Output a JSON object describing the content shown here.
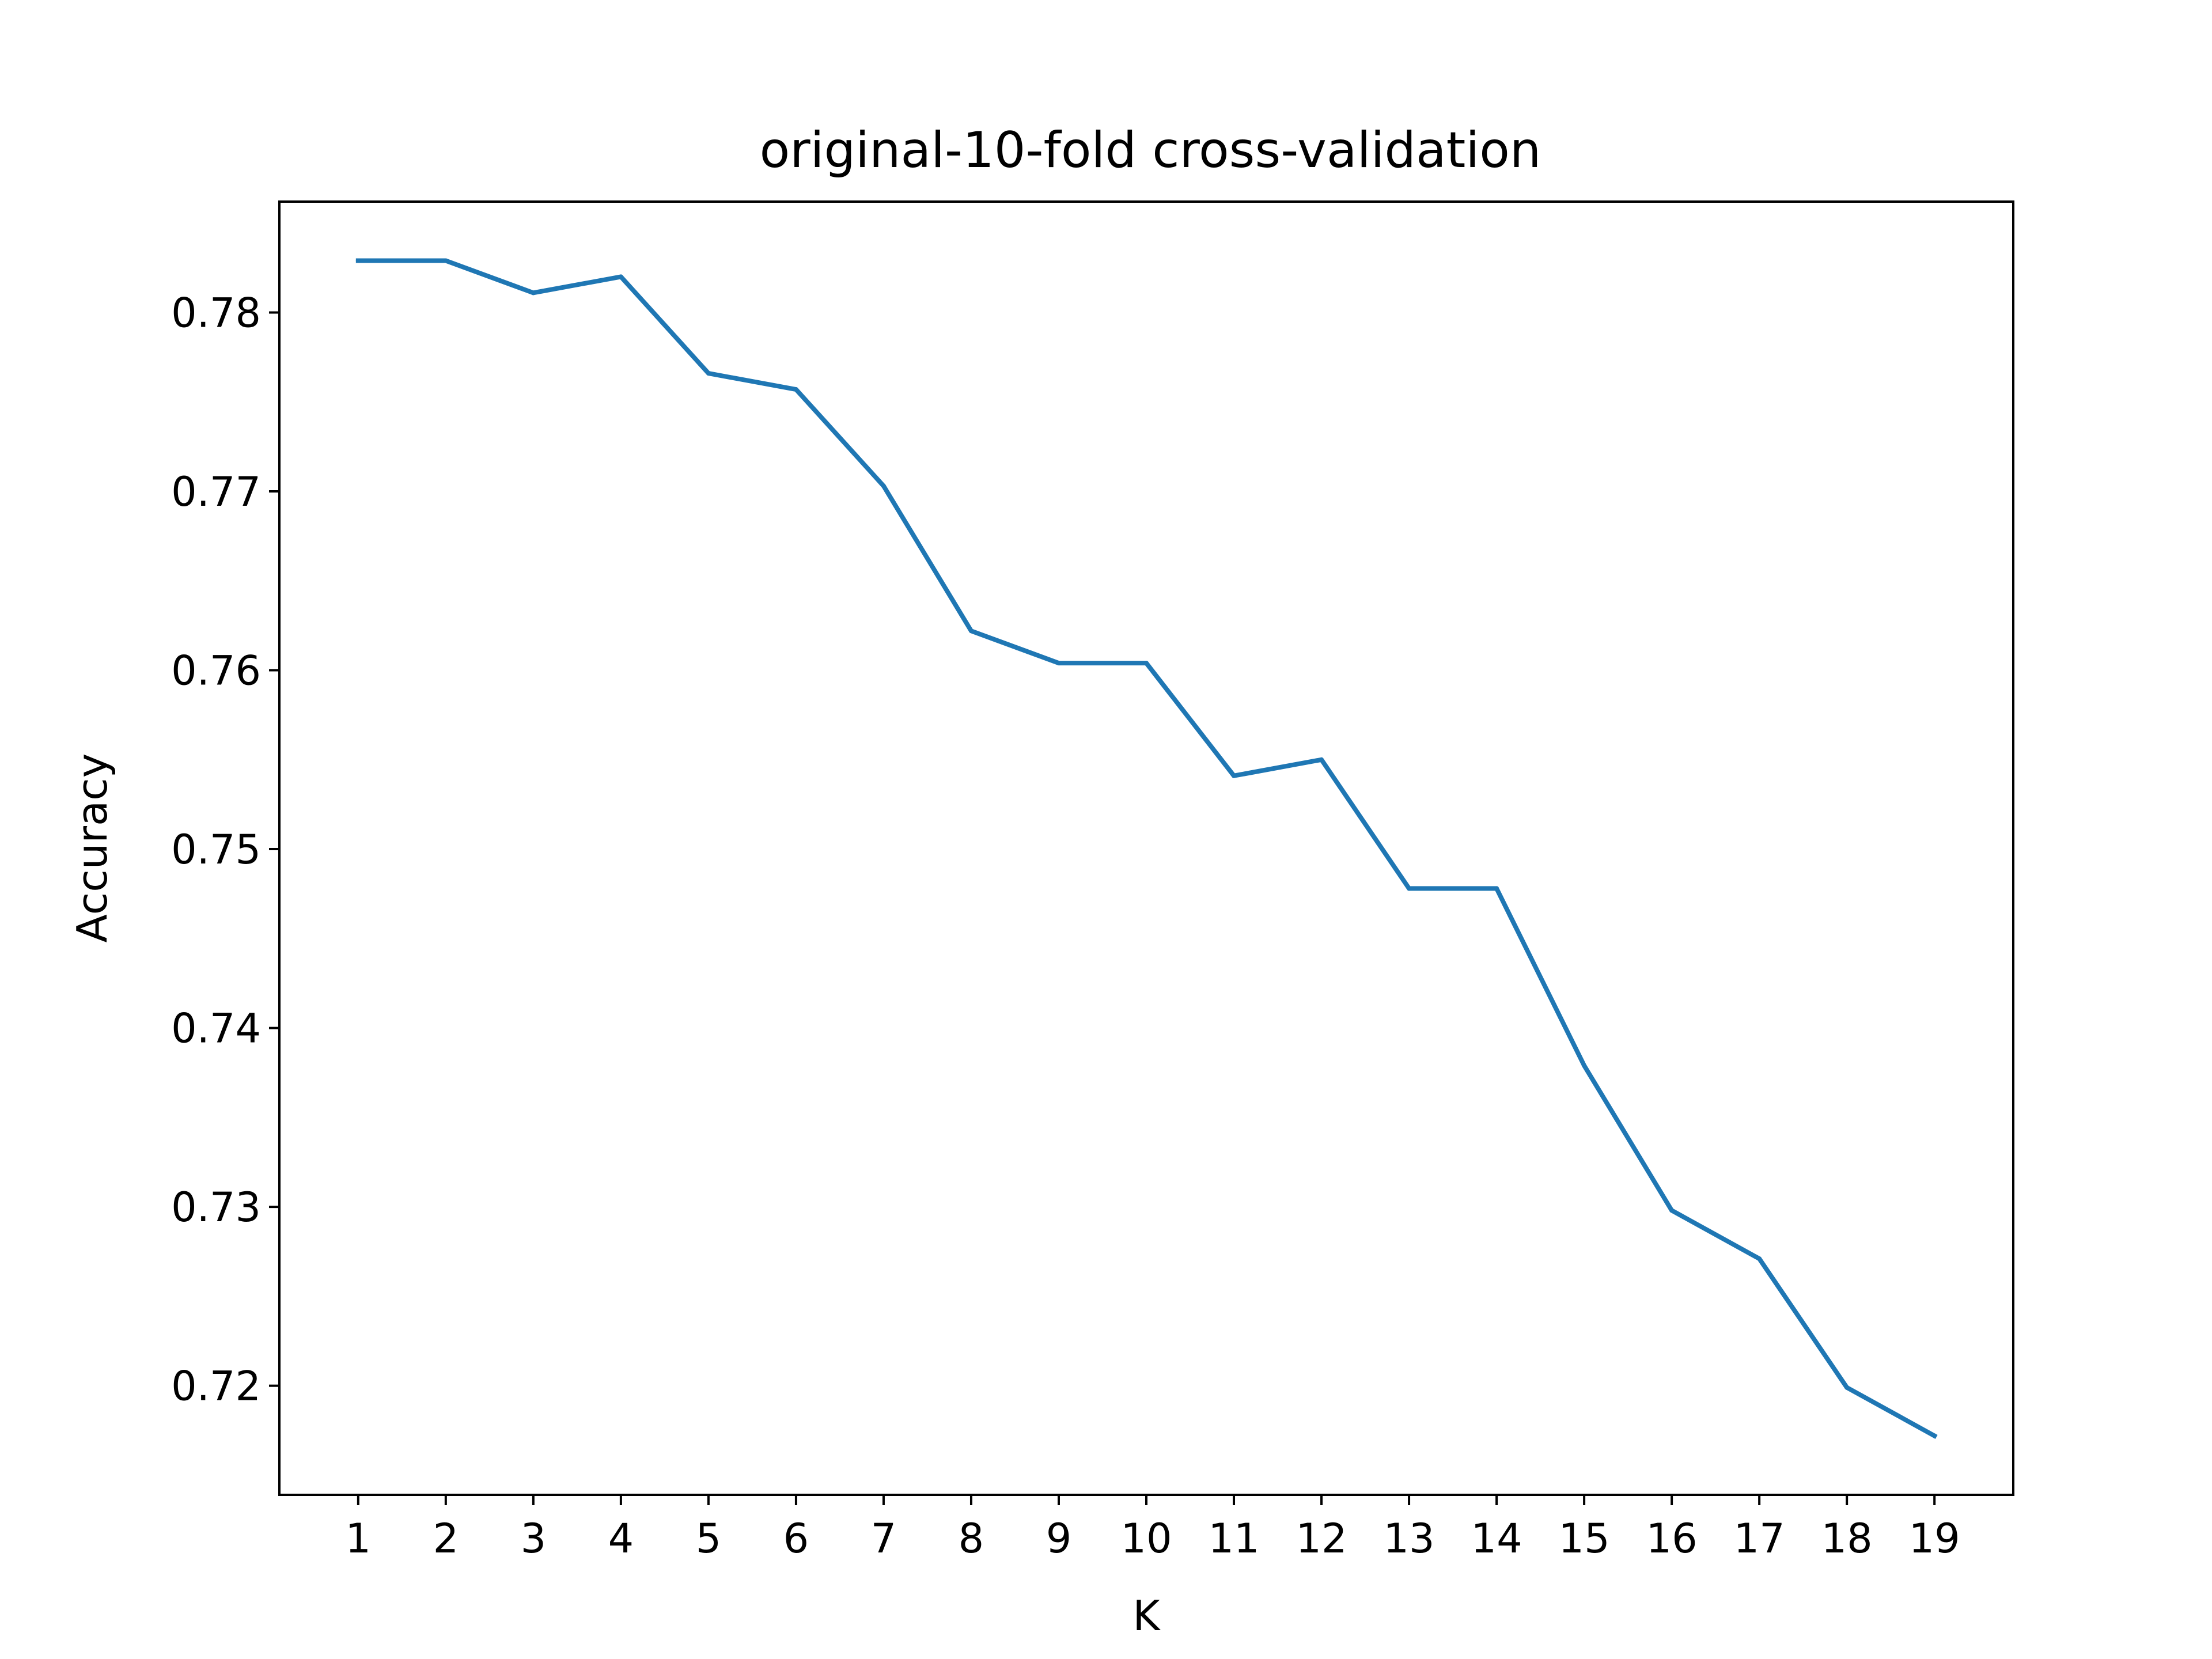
{
  "chart_data": {
    "type": "line",
    "title": "original-10-fold cross-validation",
    "xlabel": "K",
    "ylabel": "Accuracy",
    "x": [
      1,
      2,
      3,
      4,
      5,
      6,
      7,
      8,
      9,
      10,
      11,
      12,
      13,
      14,
      15,
      16,
      17,
      18,
      19
    ],
    "series": [
      {
        "values": [
          0.7829,
          0.7829,
          0.7811,
          0.782,
          0.7766,
          0.7757,
          0.7703,
          0.7622,
          0.7604,
          0.7604,
          0.7541,
          0.755,
          0.7478,
          0.7478,
          0.7379,
          0.7298,
          0.7271,
          0.7199,
          0.7172
        ],
        "color": "#1f77b4"
      }
    ],
    "xticks": [
      "1",
      "2",
      "3",
      "4",
      "5",
      "6",
      "7",
      "8",
      "9",
      "10",
      "11",
      "12",
      "13",
      "14",
      "15",
      "16",
      "17",
      "18",
      "19"
    ],
    "yticks": [
      "0.72",
      "0.73",
      "0.74",
      "0.75",
      "0.76",
      "0.77",
      "0.78"
    ],
    "xlim": [
      0.1,
      19.9
    ],
    "ylim": [
      0.7139,
      0.7862
    ],
    "grid": false,
    "legend": "none"
  }
}
